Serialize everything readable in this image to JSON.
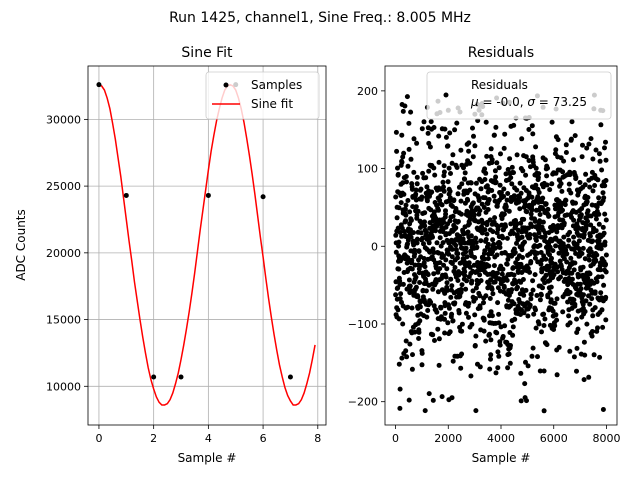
{
  "figure": {
    "suptitle": "Run 1425, channel1, Sine Freq.: 8.005 MHz"
  },
  "chart_data": [
    {
      "type": "line",
      "title": "Sine Fit",
      "xlabel": "Sample #",
      "ylabel": "ADC Counts",
      "xlim": [
        -0.4,
        8.3
      ],
      "ylim": [
        7100,
        34000
      ],
      "grid": true,
      "legend_position": "top-right",
      "xticks": [
        0,
        2,
        4,
        6,
        8
      ],
      "yticks": [
        10000,
        15000,
        20000,
        25000,
        30000
      ],
      "series": [
        {
          "name": "Samples",
          "style": "points",
          "color": "#000000",
          "x": [
            0,
            1,
            2,
            3,
            4,
            5,
            6,
            7
          ],
          "y": [
            32600,
            24300,
            10700,
            10700,
            24300,
            32600,
            24200,
            10700
          ]
        },
        {
          "name": "Sine fit",
          "style": "line",
          "color": "#ff0000",
          "x": [
            0,
            0.1,
            0.2,
            0.3,
            0.4,
            0.5,
            0.6,
            0.7,
            0.8,
            0.9,
            1.0,
            1.1,
            1.2,
            1.3,
            1.4,
            1.5,
            1.6,
            1.7,
            1.8,
            1.9,
            2.0,
            2.1,
            2.2,
            2.3,
            2.4,
            2.5,
            2.6,
            2.7,
            2.8,
            2.9,
            3.0,
            3.1,
            3.2,
            3.3,
            3.4,
            3.5,
            3.6,
            3.7,
            3.8,
            3.9,
            4.0,
            4.1,
            4.2,
            4.3,
            4.4,
            4.5,
            4.6,
            4.7,
            4.8,
            4.9,
            5.0,
            5.1,
            5.2,
            5.3,
            5.4,
            5.5,
            5.6,
            5.7,
            5.8,
            5.9,
            6.0,
            6.1,
            6.2,
            6.3,
            6.4,
            6.5,
            6.6,
            6.7,
            6.8,
            6.9,
            7.0,
            7.1,
            7.2,
            7.3,
            7.4,
            7.5,
            7.6,
            7.7,
            7.8,
            7.9
          ],
          "y": [
            32600,
            32500,
            32200,
            31600,
            30800,
            29700,
            28500,
            27100,
            25700,
            24100,
            22500,
            20900,
            19400,
            17800,
            16400,
            15000,
            13700,
            12500,
            11400,
            10500,
            9800,
            9200,
            8800,
            8600,
            8600,
            8700,
            9000,
            9500,
            10200,
            11000,
            12000,
            13100,
            14300,
            15600,
            17000,
            18500,
            20100,
            21700,
            23200,
            24700,
            26200,
            27600,
            28800,
            29900,
            30800,
            31600,
            32200,
            32500,
            32600,
            32500,
            32200,
            31600,
            30800,
            29800,
            28600,
            27300,
            25900,
            24400,
            22800,
            21200,
            19700,
            18100,
            16600,
            15200,
            13900,
            12700,
            11600,
            10700,
            9900,
            9300,
            8900,
            8600,
            8600,
            8700,
            9000,
            9500,
            10200,
            11000,
            12000,
            13100
          ]
        }
      ]
    },
    {
      "type": "scatter",
      "title": "Residuals",
      "xlabel": "Sample #",
      "ylabel": "",
      "xlim": [
        -400,
        8400
      ],
      "ylim": [
        -230,
        232
      ],
      "grid": false,
      "legend_position": "top-right",
      "xticks": [
        0,
        2000,
        4000,
        6000,
        8000
      ],
      "yticks": [
        -200,
        -100,
        0,
        100,
        200
      ],
      "series": [
        {
          "name": "Residuals",
          "color": "#000000",
          "n_points": 8000,
          "mean": -0.0,
          "std": 73.25,
          "range": [
            -215,
            195
          ]
        }
      ],
      "legend_stats": {
        "mu_prefix": "μ = ",
        "mu_value": "-0.0",
        "sep": ", ",
        "sigma_prefix": "σ = ",
        "sigma_value": "73.25"
      }
    }
  ]
}
